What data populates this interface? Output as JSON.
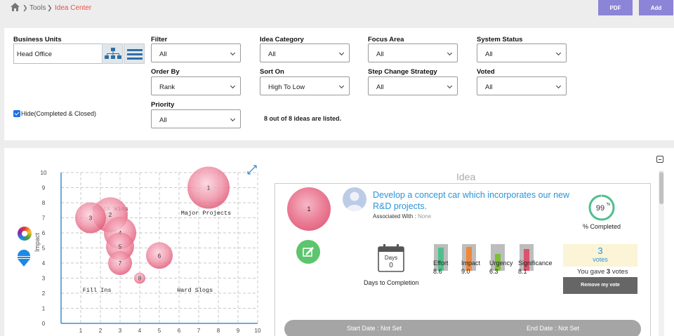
{
  "breadcrumb": {
    "items": [
      "Tools",
      "Idea Center"
    ]
  },
  "toolbar": {
    "pdf_label": "PDF",
    "add_label": "Add"
  },
  "filters": {
    "business_units": {
      "label": "Business Units",
      "value": "Head Office"
    },
    "filter": {
      "label": "Filter",
      "value": "All"
    },
    "idea_category": {
      "label": "Idea Category",
      "value": "All"
    },
    "focus_area": {
      "label": "Focus Area",
      "value": "All"
    },
    "system_status": {
      "label": "System Status",
      "value": "All"
    },
    "order_by": {
      "label": "Order By",
      "value": "Rank"
    },
    "sort_on": {
      "label": "Sort On",
      "value": "High To Low"
    },
    "step_change": {
      "label": "Step Change Strategy",
      "value": "All"
    },
    "voted": {
      "label": "Voted",
      "value": "All"
    },
    "priority": {
      "label": "Priority",
      "value": "All"
    },
    "hide_completed": {
      "label": "Hide(Completed & Closed)",
      "checked": true
    },
    "listed_text": "8 out of 8 ideas are listed."
  },
  "chart_data": {
    "type": "scatter",
    "ylabel": "Impact",
    "xlim": [
      0,
      10
    ],
    "ylim": [
      0,
      10
    ],
    "x_ticks": [
      "1",
      "2",
      "3",
      "4",
      "5",
      "6",
      "7",
      "8",
      "9",
      "10"
    ],
    "y_ticks": [
      "0",
      "1",
      "2",
      "3",
      "4",
      "5",
      "6",
      "7",
      "8",
      "9",
      "10"
    ],
    "quadrant_labels": [
      "Quick Wins",
      "Major Projects",
      "Fill Ins",
      "Hard Slogs"
    ],
    "points": [
      {
        "label": "1",
        "x": 7.5,
        "y": 9.0,
        "size": 3.0
      },
      {
        "label": "2",
        "x": 2.5,
        "y": 7.2,
        "size": 2.5
      },
      {
        "label": "3",
        "x": 1.5,
        "y": 7.0,
        "size": 2.2
      },
      {
        "label": "4",
        "x": 3.0,
        "y": 6.0,
        "size": 2.3
      },
      {
        "label": "5",
        "x": 3.0,
        "y": 5.1,
        "size": 2.0
      },
      {
        "label": "6",
        "x": 5.0,
        "y": 4.5,
        "size": 1.9
      },
      {
        "label": "7",
        "x": 3.0,
        "y": 4.0,
        "size": 1.7
      },
      {
        "label": "8",
        "x": 4.0,
        "y": 3.0,
        "size": 0.8
      }
    ]
  },
  "idea": {
    "section_title": "Idea",
    "rank": "1",
    "title": "Develop a concept car which incorporates our new R&D projects.",
    "associated_label": "Associated With :",
    "associated_value": "None",
    "progress": 99,
    "progress_text": "99",
    "progress_unit": "%",
    "progress_label": "% Completed",
    "days_label": "Days",
    "days_value": "0",
    "days_to_completion": "Days to Completion",
    "metrics": [
      {
        "name": "Effort",
        "value": "8.6",
        "level": 0.86,
        "color": "#4fc08d"
      },
      {
        "name": "Impact",
        "value": "9.0",
        "level": 0.9,
        "color": "#f0883a"
      },
      {
        "name": "Urgency",
        "value": "6.3",
        "level": 0.63,
        "color": "#7bbf3a"
      },
      {
        "name": "Significance",
        "value": "8.1",
        "level": 0.81,
        "color": "#d9546c"
      }
    ],
    "votes_count": "3",
    "votes_label": "votes",
    "you_gave_prefix": "You gave",
    "you_gave_count": "3",
    "you_gave_suffix": "votes",
    "remove_vote_label": "Remove my vote",
    "start_date": "Start Date : Not Set",
    "end_date": "End Date : Not Set"
  },
  "colors": {
    "accent": "#8b84d7",
    "link": "#2a95d8",
    "crumb_active": "#e8524a"
  }
}
